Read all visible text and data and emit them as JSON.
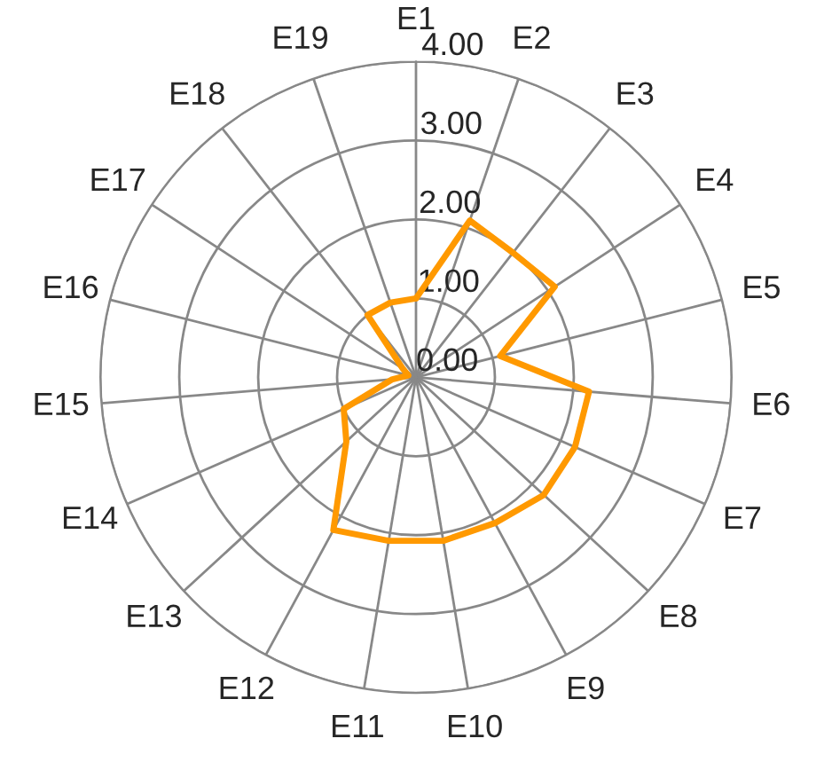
{
  "chart_data": {
    "type": "radar",
    "categories": [
      "E1",
      "E2",
      "E3",
      "E4",
      "E5",
      "E6",
      "E7",
      "E8",
      "E9",
      "E10",
      "E11",
      "E12",
      "E13",
      "E14",
      "E15",
      "E16",
      "E17",
      "E18",
      "E19"
    ],
    "series": [
      {
        "color": "#ff9900",
        "values": [
          1.0,
          2.1,
          2.0,
          2.1,
          1.1,
          2.2,
          2.2,
          2.2,
          2.1,
          2.1,
          2.1,
          2.2,
          1.2,
          1.0,
          0.3,
          0.1,
          0.2,
          1.0,
          1.0
        ]
      }
    ],
    "ylim": [
      0,
      4
    ],
    "yticks": [
      {
        "value": 0,
        "label": "0.00"
      },
      {
        "value": 1,
        "label": "1.00"
      },
      {
        "value": 2,
        "label": "2.00"
      },
      {
        "value": 3,
        "label": "3.00"
      },
      {
        "value": 4,
        "label": "4.00"
      }
    ],
    "grid": true,
    "marker": "none",
    "line_style": "solid"
  }
}
